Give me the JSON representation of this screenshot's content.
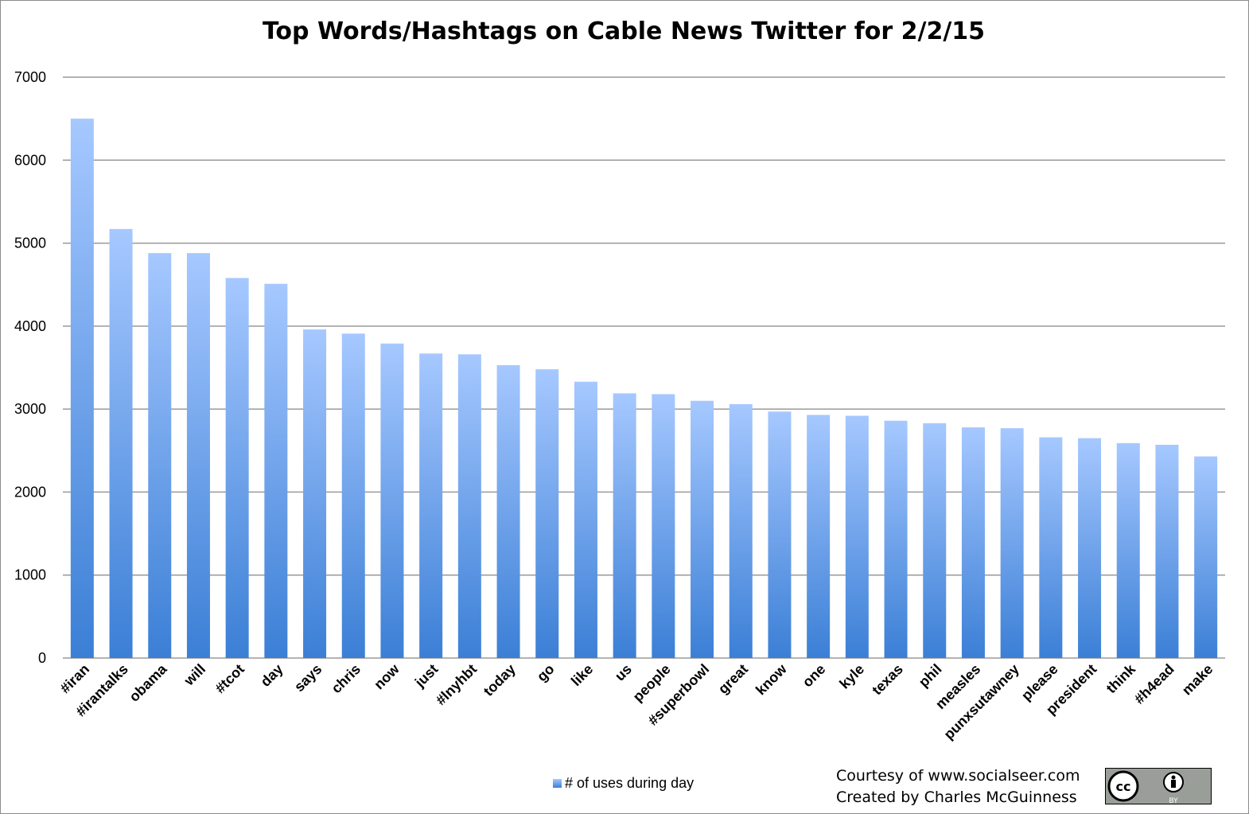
{
  "chart_data": {
    "type": "bar",
    "title": "Top Words/Hashtags on Cable News Twitter for 2/2/15",
    "xlabel": "",
    "ylabel": "",
    "ylim": [
      0,
      7000
    ],
    "yticks": [
      0,
      1000,
      2000,
      3000,
      4000,
      5000,
      6000,
      7000
    ],
    "grid": true,
    "legend_position": "bottom",
    "categories": [
      "#iran",
      "#irantalks",
      "obama",
      "will",
      "#tcot",
      "day",
      "says",
      "chris",
      "now",
      "just",
      "#lnyhbt",
      "today",
      "go",
      "like",
      "us",
      "people",
      "#superbowl",
      "great",
      "know",
      "one",
      "kyle",
      "texas",
      "phil",
      "measles",
      "punxsutawney",
      "please",
      "president",
      "think",
      "#h4ead",
      "make"
    ],
    "series": [
      {
        "name": "# of uses during day",
        "color": "#4f8ee0",
        "values": [
          6500,
          5170,
          4880,
          4880,
          4580,
          4510,
          3960,
          3910,
          3790,
          3670,
          3660,
          3530,
          3480,
          3330,
          3190,
          3180,
          3100,
          3060,
          2970,
          2930,
          2920,
          2860,
          2830,
          2780,
          2770,
          2660,
          2650,
          2590,
          2570,
          2430
        ]
      }
    ]
  },
  "credit": {
    "line1": "Courtesy of www.socialseer.com",
    "line2": "Created by Charles McGuinness"
  },
  "license_badge": {
    "text": "cc",
    "by": "BY"
  },
  "colors": {
    "bar_top": "#a6c8ff",
    "bar_bottom": "#3b7fd6",
    "grid": "#9a9a9a"
  }
}
